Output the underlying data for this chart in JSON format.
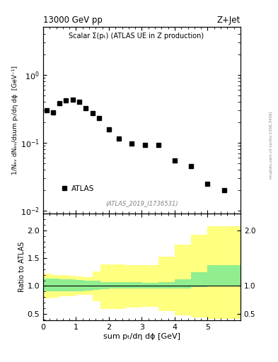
{
  "title_left": "13000 GeV pp",
  "title_right": "Z+Jet",
  "annotation": "Scalar Σ(pₜ) (ATLAS UE in Z production)",
  "watermark": "(ATLAS_2019_I1736531)",
  "side_label": "mcplots.cern.ch [arXiv:1306.3436]",
  "legend_label": "ATLAS",
  "xlabel": "sum pₜ/dη dϕ [GeV]",
  "ylabel": "1/Nₑᵥ dNₑᵥ/dsum pₜ/dη dϕ  [GeV⁻¹]",
  "ylabel_ratio": "Ratio to ATLAS",
  "xlim": [
    0,
    6
  ],
  "ylim_log": [
    0.009,
    5
  ],
  "ylim_ratio": [
    0.38,
    2.3
  ],
  "data_x": [
    0.1,
    0.3,
    0.5,
    0.7,
    0.9,
    1.1,
    1.3,
    1.5,
    1.7,
    2.0,
    2.3,
    2.7,
    3.1,
    3.5,
    4.0,
    4.5,
    5.0,
    5.5
  ],
  "data_y": [
    0.3,
    0.28,
    0.38,
    0.42,
    0.43,
    0.4,
    0.32,
    0.27,
    0.23,
    0.155,
    0.115,
    0.097,
    0.093,
    0.093,
    0.055,
    0.045,
    0.025,
    0.02
  ],
  "yellow_bins": [
    [
      0.0,
      0.25,
      0.75,
      0.8,
      1.2,
      1.25
    ],
    [
      0.25,
      0.5,
      0.77,
      0.82,
      1.22,
      1.18
    ],
    [
      0.5,
      0.75,
      0.8,
      0.82,
      1.2,
      1.18
    ],
    [
      0.75,
      1.0,
      0.8,
      0.82,
      1.18,
      1.18
    ],
    [
      1.0,
      1.25,
      0.82,
      0.85,
      1.18,
      1.16
    ],
    [
      1.25,
      1.5,
      0.82,
      0.85,
      1.16,
      1.15
    ],
    [
      1.5,
      1.75,
      0.85,
      0.6,
      1.15,
      1.38
    ],
    [
      1.75,
      2.0,
      0.6,
      0.58,
      1.38,
      1.4
    ],
    [
      2.0,
      2.5,
      0.58,
      0.6,
      1.4,
      1.38
    ],
    [
      2.5,
      3.0,
      0.6,
      0.62,
      1.38,
      1.38
    ],
    [
      3.0,
      3.5,
      0.62,
      0.62,
      1.38,
      1.38
    ],
    [
      3.5,
      4.0,
      0.62,
      0.48,
      1.38,
      1.68
    ],
    [
      4.0,
      4.5,
      0.48,
      0.45,
      1.68,
      1.8
    ],
    [
      4.5,
      5.0,
      0.45,
      0.42,
      1.8,
      2.05
    ],
    [
      5.0,
      6.0,
      0.42,
      0.4,
      2.05,
      2.1
    ]
  ],
  "green_bins": [
    [
      0.0,
      0.25,
      0.9,
      0.9,
      1.12,
      1.14
    ],
    [
      0.25,
      0.5,
      0.9,
      0.9,
      1.14,
      1.12
    ],
    [
      0.5,
      0.75,
      0.9,
      0.9,
      1.12,
      1.12
    ],
    [
      0.75,
      1.0,
      0.9,
      0.9,
      1.12,
      1.12
    ],
    [
      1.0,
      1.25,
      0.9,
      0.9,
      1.12,
      1.1
    ],
    [
      1.25,
      1.5,
      0.9,
      0.92,
      1.1,
      1.1
    ],
    [
      1.5,
      1.75,
      0.92,
      0.94,
      1.1,
      1.08
    ],
    [
      1.75,
      2.0,
      0.94,
      0.95,
      1.08,
      1.07
    ],
    [
      2.0,
      2.5,
      0.95,
      0.95,
      1.07,
      1.07
    ],
    [
      2.5,
      3.0,
      0.95,
      0.95,
      1.07,
      1.07
    ],
    [
      3.0,
      3.5,
      0.95,
      0.95,
      1.07,
      1.05
    ],
    [
      3.5,
      4.0,
      0.95,
      0.95,
      1.05,
      1.1
    ],
    [
      4.0,
      4.5,
      0.95,
      0.97,
      1.1,
      1.15
    ],
    [
      4.5,
      5.0,
      0.97,
      1.0,
      1.15,
      1.35
    ],
    [
      5.0,
      6.0,
      1.0,
      1.0,
      1.35,
      1.4
    ]
  ],
  "green_color": "#90ee90",
  "yellow_color": "#ffff80",
  "data_color": "black",
  "marker": "s",
  "marker_size": 4
}
